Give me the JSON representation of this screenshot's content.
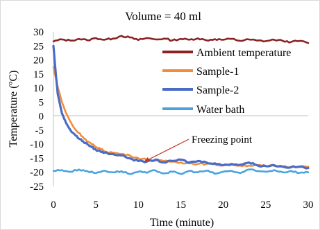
{
  "chart_data": {
    "type": "line",
    "title": "Volume = 40 ml",
    "xlabel": "Time (minute)",
    "ylabel": "Temperature (ºC)",
    "xlim": [
      0,
      30
    ],
    "ylim": [
      -25,
      30
    ],
    "xticks": [
      "0",
      "5",
      "10",
      "15",
      "20",
      "25",
      "30"
    ],
    "yticks": [
      "30",
      "25",
      "20",
      "15",
      "10",
      "5",
      "0",
      "-5",
      "-10",
      "-15",
      "-20",
      "-25"
    ],
    "grid": false,
    "legend_position": "right",
    "annotation": {
      "text": "Freezing point",
      "x": 10.5,
      "y": -16.5
    },
    "series": [
      {
        "name": "Ambient temperature",
        "color": "#8b2323",
        "x": [
          0,
          1,
          2,
          3,
          4,
          5,
          6,
          7,
          8,
          9,
          10,
          11,
          12,
          13,
          14,
          15,
          16,
          17,
          18,
          19,
          20,
          21,
          22,
          23,
          24,
          25,
          26,
          27,
          28,
          29,
          30
        ],
        "y": [
          26.6,
          27.3,
          26.9,
          27.5,
          27.0,
          27.8,
          27.2,
          27.6,
          28.6,
          28.0,
          27.1,
          27.8,
          27.3,
          27.6,
          27.0,
          27.5,
          27.2,
          27.7,
          27.0,
          27.4,
          27.2,
          27.5,
          26.8,
          27.3,
          26.9,
          26.7,
          27.2,
          26.8,
          26.4,
          26.8,
          26.0
        ]
      },
      {
        "name": "Sample-1",
        "color": "#f28c3a",
        "x": [
          0,
          0.25,
          0.5,
          1,
          1.5,
          2,
          2.5,
          3,
          3.5,
          4,
          4.5,
          5,
          5.5,
          6,
          7,
          8,
          9,
          10,
          11,
          12,
          13,
          14,
          15,
          16,
          17,
          18,
          19,
          20,
          21,
          22,
          23,
          24,
          25,
          26,
          27,
          28,
          29,
          30
        ],
        "y": [
          17.5,
          14.0,
          10.5,
          5.0,
          1.0,
          -2.0,
          -4.5,
          -6.0,
          -7.5,
          -9.0,
          -10.0,
          -11.0,
          -11.5,
          -12.5,
          -13.0,
          -13.5,
          -14.0,
          -15.0,
          -15.5,
          -15.8,
          -16.0,
          -16.2,
          -16.5,
          -16.8,
          -17.0,
          -17.0,
          -17.2,
          -17.5,
          -17.3,
          -17.6,
          -17.6,
          -17.5,
          -17.8,
          -17.7,
          -17.9,
          -18.0,
          -17.9,
          -18.0
        ]
      },
      {
        "name": "Sample-2",
        "color": "#4a6cc4",
        "x": [
          0,
          0.25,
          0.5,
          1,
          1.5,
          2,
          2.5,
          3,
          3.5,
          4,
          4.5,
          5,
          5.5,
          6,
          7,
          8,
          9,
          10,
          11,
          12,
          13,
          14,
          15,
          16,
          17,
          18,
          19,
          20,
          21,
          22,
          23,
          24,
          25,
          26,
          27,
          28,
          29,
          30
        ],
        "y": [
          25.0,
          16.0,
          8.0,
          1.0,
          -2.5,
          -5.0,
          -6.5,
          -8.0,
          -9.0,
          -10.0,
          -11.0,
          -12.0,
          -12.5,
          -13.0,
          -13.5,
          -14.0,
          -15.0,
          -16.0,
          -16.2,
          -15.5,
          -16.5,
          -16.0,
          -15.5,
          -16.5,
          -16.0,
          -16.5,
          -16.8,
          -17.5,
          -17.0,
          -17.3,
          -16.5,
          -17.5,
          -17.8,
          -17.5,
          -18.0,
          -18.2,
          -18.0,
          -18.5
        ]
      },
      {
        "name": "Water bath",
        "color": "#4aa3df",
        "x": [
          0,
          1,
          2,
          3,
          4,
          5,
          6,
          7,
          8,
          9,
          10,
          11,
          12,
          13,
          14,
          15,
          16,
          17,
          18,
          19,
          20,
          21,
          22,
          23,
          24,
          25,
          26,
          27,
          28,
          29,
          30
        ],
        "y": [
          -19.5,
          -19.2,
          -19.8,
          -19.0,
          -19.6,
          -20.3,
          -19.4,
          -20.0,
          -19.6,
          -20.6,
          -19.8,
          -20.2,
          -19.3,
          -20.4,
          -19.8,
          -20.6,
          -19.5,
          -20.0,
          -19.4,
          -20.5,
          -19.8,
          -19.5,
          -20.3,
          -19.0,
          -19.6,
          -19.8,
          -19.2,
          -20.0,
          -19.5,
          -20.2,
          -20.0
        ]
      }
    ]
  }
}
